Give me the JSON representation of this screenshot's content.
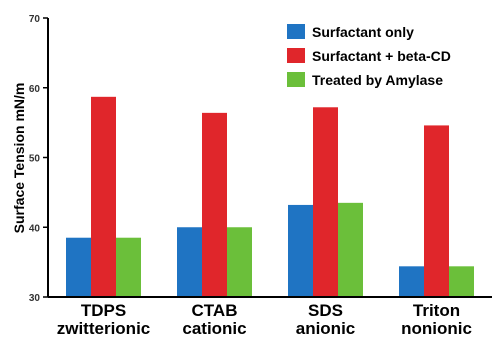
{
  "chart_data": {
    "type": "bar",
    "categories": [
      [
        "TDPS",
        "zwitterionic"
      ],
      [
        "CTAB",
        "cationic"
      ],
      [
        "SDS",
        "anionic"
      ],
      [
        "Triton",
        "nonionic"
      ]
    ],
    "series": [
      {
        "name": "Surfactant only",
        "color": "#1f74c3",
        "values": [
          38.5,
          40.0,
          43.2,
          34.4
        ]
      },
      {
        "name": "Surfactant + beta-CD",
        "color": "#e0262b",
        "values": [
          58.7,
          56.4,
          57.2,
          54.6
        ]
      },
      {
        "name": "Treated by Amylase",
        "color": "#6bbf3a",
        "values": [
          38.5,
          40.0,
          43.5,
          34.4
        ]
      }
    ],
    "title": "",
    "xlabel": "",
    "ylabel": "Surface Tension mN/m",
    "ylim": [
      30,
      70
    ],
    "yticks": [
      30,
      40,
      50,
      60,
      70
    ],
    "grid": false,
    "legend_position": "top-right"
  }
}
